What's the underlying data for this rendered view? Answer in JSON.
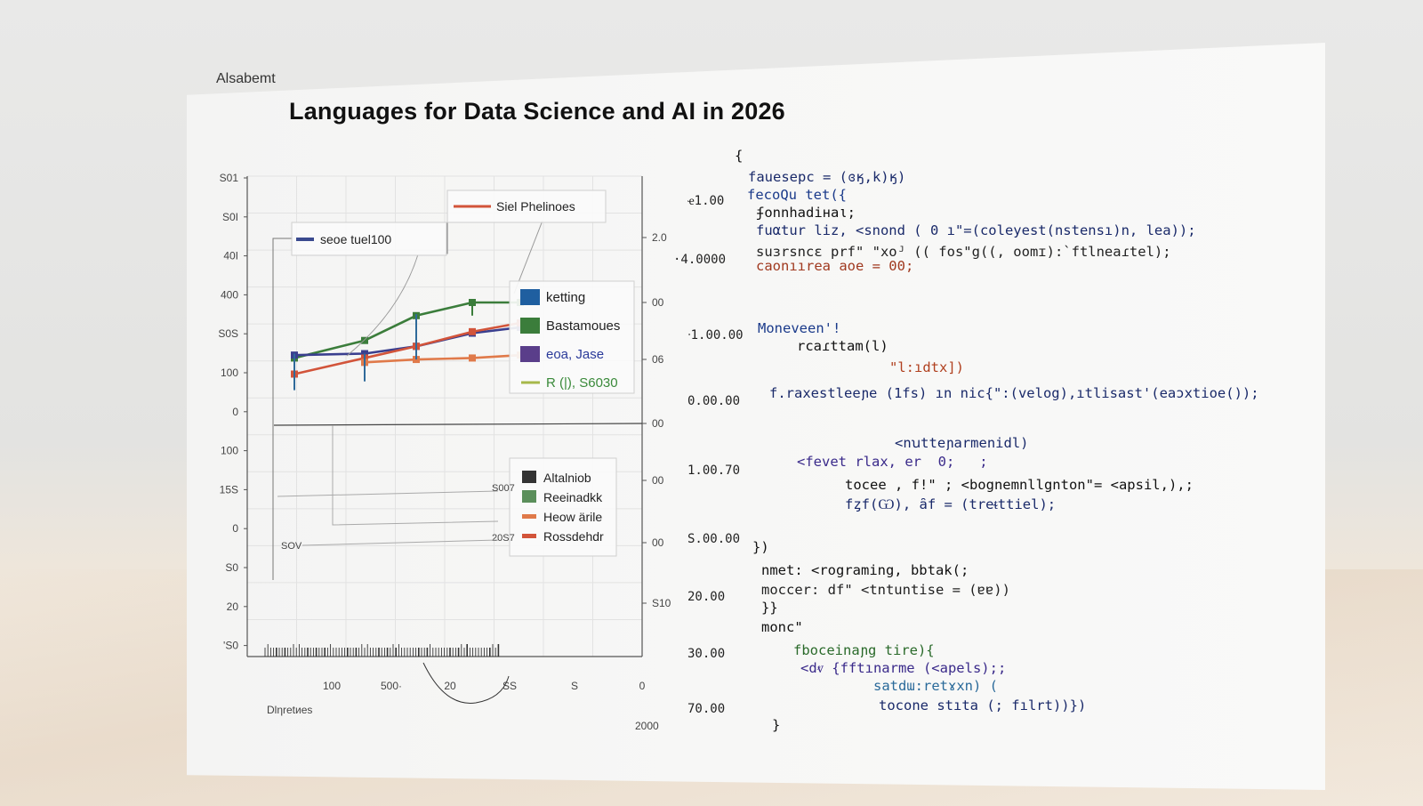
{
  "header": {
    "tag": "Alsabemt",
    "title": "Languages for Data Science and AI in 2026"
  },
  "chart_data": {
    "type": "line",
    "x": [
      1,
      2,
      3,
      4,
      5
    ],
    "ylim": [
      0,
      500
    ],
    "y_tick_labels_left": [
      "Ѕ01",
      "Ѕ0Ӏ",
      "40Ӏ",
      "400",
      "Ѕ0Ѕ",
      "100",
      "0",
      "100",
      "15Ѕ",
      "0",
      "Ѕ0",
      "20",
      "'Ѕ0"
    ],
    "y_tick_labels_right": [
      "2.0",
      "00",
      "06",
      "00",
      "00",
      "00",
      "Ѕ10"
    ],
    "x_tick_labels": [
      "100",
      "500·",
      "20",
      "ЅЅ",
      "Ѕ",
      "0"
    ],
    "xlabel": "Dlηretиes",
    "x_corner_label": "2000",
    "inline_labels": [
      "Ѕ007",
      "20Ѕ7",
      "ЅOV"
    ],
    "legend_top": [
      {
        "label": "seoe tuel100",
        "color": "#3a4a8f"
      },
      {
        "label": "Siel Phelinoes",
        "color": "#d2543a"
      }
    ],
    "legend_middle": [
      {
        "label": "ketting",
        "color": "#1f5fa0"
      },
      {
        "label": "Bastamoues",
        "color": "#3b7d3b"
      },
      {
        "label": "eoa, Jase",
        "color": "#5a3e8a"
      },
      {
        "label": "R (|), S6030",
        "color": "#a7b84a"
      }
    ],
    "legend_bottom": [
      {
        "label": "Altalniob",
        "color": "#333333"
      },
      {
        "label": "Reeinadkk",
        "color": "#5b8f5b"
      },
      {
        "label": "Heow ärile",
        "color": "#e07a4a"
      },
      {
        "label": "Rossdehdr",
        "color": "#d2543a"
      }
    ],
    "series": [
      {
        "color": "#3b7d3b",
        "values": [
          230,
          290,
          375,
          420,
          420
        ]
      },
      {
        "color": "#3a3f8f",
        "values": [
          240,
          245,
          270,
          315,
          335
        ]
      },
      {
        "color": "#d2543a",
        "values": [
          175,
          230,
          270,
          320,
          350
        ]
      },
      {
        "color": "#e07a4a",
        "values": [
          null,
          215,
          225,
          230,
          240
        ]
      }
    ],
    "error_bars": [
      {
        "x": 1,
        "low": 120,
        "high": 245,
        "color": "#2f6a9a"
      },
      {
        "x": 2,
        "low": 150,
        "high": 245,
        "color": "#2f6a9a"
      },
      {
        "x": 3,
        "low": 225,
        "high": 380,
        "color": "#2f6a9a"
      },
      {
        "x": 4,
        "low": 375,
        "high": 430,
        "color": "#3b7d3b"
      }
    ]
  },
  "code_panel": {
    "gutter": [
      "ҽ1.00",
      "·4.0000",
      "ᐧ1.00.00",
      "0.00.00",
      "1.00.70",
      "Ѕ.00.00",
      "20.00",
      "30.00",
      "70.00"
    ],
    "lines": [
      {
        "text": "{",
        "color": "#111111"
      },
      {
        "text": "faueseрс = (ɞӄ,k)ӄ)",
        "color": "#1a2a6a"
      },
      {
        "text": "fecoQu tet({",
        "color": "#1a3a8a"
      },
      {
        "text": "ʄonnhadiнaι;",
        "color": "#111111"
      },
      {
        "text": "fuαtur liz, <snond ( 0 ı\"=(coleyest(nstensı)n, lea));",
        "color": "#1a2a6a"
      },
      {
        "text": "suɜrsncɛ prf\" \"xoᴶ (( foѕ\"g((, oomɪ):`ftlneaɾtel);",
        "color": "#222222"
      },
      {
        "text": "caonıırea aoe = 00;",
        "color": "#a0391f"
      },
      {
        "text": "Moneveen'!",
        "color": "#1a3a8a"
      },
      {
        "text": "rcaɾttam(l)",
        "color": "#111111"
      },
      {
        "text": "\"l:ıdtx])",
        "color": "#b0401f"
      },
      {
        "text": "f.raxestleeɲe (1fs) ın nic{\":(velog),ıtlisast'(eaɔxtioe());",
        "color": "#1a2a6a"
      },
      {
        "text": "<nꭒtteɲarmenidl)",
        "color": "#1a2a6a"
      },
      {
        "text": "<fevet rlax, er  0;   ;",
        "color": "#3a2a8a"
      },
      {
        "text": "tocee , f!\" ; <bognemnllgnton\"= <apsil,),;",
        "color": "#111111"
      },
      {
        "text": "fȥf(Ѡ), ȃf = (treᵵttiel);",
        "color": "#1a2a6a"
      },
      {
        "text": "})",
        "color": "#111111"
      },
      {
        "text": "nmet: <rograming, bbtak(;",
        "color": "#111111"
      },
      {
        "text": "moccer: df\" <tntuntise = (ɐɐ))",
        "color": "#222222"
      },
      {
        "text": "}}",
        "color": "#111111"
      },
      {
        "text": "monc\"",
        "color": "#111111"
      },
      {
        "text": "fboceinaɲg tire){",
        "color": "#2a6a2a"
      },
      {
        "text": "<dⱴ {fftınarme (<apels);;",
        "color": "#3a2a8a"
      },
      {
        "text": "satdɯ:retɤxn) (",
        "color": "#2a6a9a"
      },
      {
        "text": "tocone stıta (; fılrt))})",
        "color": "#1a2a6a"
      },
      {
        "text": "}",
        "color": "#111111"
      }
    ]
  }
}
